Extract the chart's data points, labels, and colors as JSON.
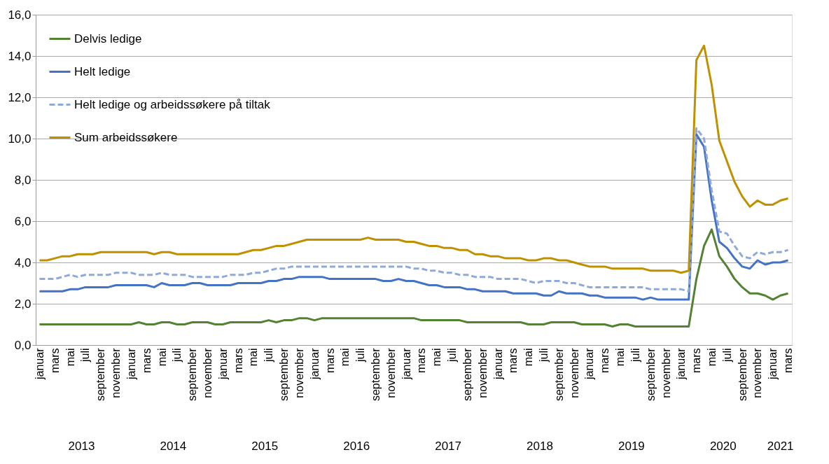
{
  "chart_data": {
    "type": "line",
    "categories": [
      "januar",
      null,
      "mars",
      null,
      "mai",
      null,
      "juli",
      null,
      "september",
      null,
      "november",
      null,
      "januar",
      null,
      "mars",
      null,
      "mai",
      null,
      "juli",
      null,
      "september",
      null,
      "november",
      null,
      "januar",
      null,
      "mars",
      null,
      "mai",
      null,
      "juli",
      null,
      "september",
      null,
      "november",
      null,
      "januar",
      null,
      "mars",
      null,
      "mai",
      null,
      "juli",
      null,
      "september",
      null,
      "november",
      null,
      "januar",
      null,
      "mars",
      null,
      "mai",
      null,
      "juli",
      null,
      "september",
      null,
      "november",
      null,
      "januar",
      null,
      "mars",
      null,
      "mai",
      null,
      "juli",
      null,
      "september",
      null,
      "november",
      null,
      "januar",
      null,
      "mars",
      null,
      "mai",
      null,
      "juli",
      null,
      "september",
      null,
      "november",
      null,
      "januar",
      null,
      "mars",
      null,
      "mai",
      null,
      "juli",
      null,
      "september",
      null,
      "november",
      null,
      "januar",
      null,
      "mars"
    ],
    "series": [
      {
        "name": "Delvis ledige",
        "color": "#548235",
        "line_style": "solid",
        "values": [
          1.0,
          1.0,
          1.0,
          1.0,
          1.0,
          1.0,
          1.0,
          1.0,
          1.0,
          1.0,
          1.0,
          1.0,
          1.0,
          1.1,
          1.0,
          1.0,
          1.1,
          1.1,
          1.0,
          1.0,
          1.1,
          1.1,
          1.1,
          1.0,
          1.0,
          1.1,
          1.1,
          1.1,
          1.1,
          1.1,
          1.2,
          1.1,
          1.2,
          1.2,
          1.3,
          1.3,
          1.2,
          1.3,
          1.3,
          1.3,
          1.3,
          1.3,
          1.3,
          1.3,
          1.3,
          1.3,
          1.3,
          1.3,
          1.3,
          1.3,
          1.2,
          1.2,
          1.2,
          1.2,
          1.2,
          1.2,
          1.1,
          1.1,
          1.1,
          1.1,
          1.1,
          1.1,
          1.1,
          1.1,
          1.0,
          1.0,
          1.0,
          1.1,
          1.1,
          1.1,
          1.1,
          1.0,
          1.0,
          1.0,
          1.0,
          0.9,
          1.0,
          1.0,
          0.9,
          0.9,
          0.9,
          0.9,
          0.9,
          0.9,
          0.9,
          0.9,
          3.2,
          4.8,
          5.6,
          4.3,
          3.8,
          3.2,
          2.8,
          2.5,
          2.5,
          2.4,
          2.2,
          2.4,
          2.5
        ]
      },
      {
        "name": "Helt ledige",
        "color": "#4472c4",
        "line_style": "solid",
        "values": [
          2.6,
          2.6,
          2.6,
          2.6,
          2.7,
          2.7,
          2.8,
          2.8,
          2.8,
          2.8,
          2.9,
          2.9,
          2.9,
          2.9,
          2.9,
          2.8,
          3.0,
          2.9,
          2.9,
          2.9,
          3.0,
          3.0,
          2.9,
          2.9,
          2.9,
          2.9,
          3.0,
          3.0,
          3.0,
          3.0,
          3.1,
          3.1,
          3.2,
          3.2,
          3.3,
          3.3,
          3.3,
          3.3,
          3.2,
          3.2,
          3.2,
          3.2,
          3.2,
          3.2,
          3.2,
          3.1,
          3.1,
          3.2,
          3.1,
          3.1,
          3.0,
          2.9,
          2.9,
          2.8,
          2.8,
          2.8,
          2.7,
          2.7,
          2.6,
          2.6,
          2.6,
          2.6,
          2.5,
          2.5,
          2.5,
          2.5,
          2.4,
          2.4,
          2.6,
          2.5,
          2.5,
          2.5,
          2.4,
          2.4,
          2.3,
          2.3,
          2.3,
          2.3,
          2.3,
          2.2,
          2.3,
          2.2,
          2.2,
          2.2,
          2.2,
          2.2,
          10.2,
          9.6,
          7.0,
          5.0,
          4.7,
          4.2,
          3.8,
          3.7,
          4.1,
          3.9,
          4.0,
          4.0,
          4.1
        ]
      },
      {
        "name": "Helt ledige og arbeidssøkere på tiltak",
        "color": "#8eaadb",
        "line_style": "dashed",
        "values": [
          3.2,
          3.2,
          3.2,
          3.3,
          3.4,
          3.3,
          3.4,
          3.4,
          3.4,
          3.4,
          3.5,
          3.5,
          3.5,
          3.4,
          3.4,
          3.4,
          3.5,
          3.4,
          3.4,
          3.4,
          3.3,
          3.3,
          3.3,
          3.3,
          3.3,
          3.4,
          3.4,
          3.4,
          3.5,
          3.5,
          3.6,
          3.7,
          3.7,
          3.8,
          3.8,
          3.8,
          3.8,
          3.8,
          3.8,
          3.8,
          3.8,
          3.8,
          3.8,
          3.8,
          3.8,
          3.8,
          3.8,
          3.8,
          3.8,
          3.7,
          3.7,
          3.6,
          3.6,
          3.5,
          3.5,
          3.4,
          3.4,
          3.3,
          3.3,
          3.3,
          3.2,
          3.2,
          3.2,
          3.2,
          3.1,
          3.0,
          3.1,
          3.1,
          3.1,
          3.0,
          3.0,
          2.9,
          2.8,
          2.8,
          2.8,
          2.8,
          2.8,
          2.8,
          2.8,
          2.8,
          2.7,
          2.7,
          2.7,
          2.7,
          2.7,
          2.6,
          10.5,
          10.0,
          7.5,
          5.5,
          5.4,
          4.8,
          4.3,
          4.2,
          4.5,
          4.4,
          4.5,
          4.5,
          4.6
        ]
      },
      {
        "name": "Sum arbeidssøkere",
        "color": "#bf9000",
        "line_style": "solid",
        "values": [
          4.1,
          4.1,
          4.2,
          4.3,
          4.3,
          4.4,
          4.4,
          4.4,
          4.5,
          4.5,
          4.5,
          4.5,
          4.5,
          4.5,
          4.5,
          4.4,
          4.5,
          4.5,
          4.4,
          4.4,
          4.4,
          4.4,
          4.4,
          4.4,
          4.4,
          4.4,
          4.4,
          4.5,
          4.6,
          4.6,
          4.7,
          4.8,
          4.8,
          4.9,
          5.0,
          5.1,
          5.1,
          5.1,
          5.1,
          5.1,
          5.1,
          5.1,
          5.1,
          5.2,
          5.1,
          5.1,
          5.1,
          5.1,
          5.0,
          5.0,
          4.9,
          4.8,
          4.8,
          4.7,
          4.7,
          4.6,
          4.6,
          4.4,
          4.4,
          4.3,
          4.3,
          4.2,
          4.2,
          4.2,
          4.1,
          4.1,
          4.2,
          4.2,
          4.1,
          4.1,
          4.0,
          3.9,
          3.8,
          3.8,
          3.8,
          3.7,
          3.7,
          3.7,
          3.7,
          3.7,
          3.6,
          3.6,
          3.6,
          3.6,
          3.5,
          3.6,
          13.8,
          14.5,
          12.6,
          9.9,
          8.9,
          7.9,
          7.2,
          6.7,
          7.0,
          6.8,
          6.8,
          7.0,
          7.1
        ]
      }
    ],
    "ylim": [
      0,
      16
    ],
    "yticks": [
      {
        "value": 0,
        "label": "0,0"
      },
      {
        "value": 2,
        "label": "2,0"
      },
      {
        "value": 4,
        "label": "4,0"
      },
      {
        "value": 6,
        "label": "6,0"
      },
      {
        "value": 8,
        "label": "8,0"
      },
      {
        "value": 10,
        "label": "10,0"
      },
      {
        "value": 12,
        "label": "12,0"
      },
      {
        "value": 14,
        "label": "14,0"
      },
      {
        "value": 16,
        "label": "16,0"
      }
    ],
    "grid": "y",
    "legend": "top left",
    "annotations": [
      "2013",
      "2014",
      "2015",
      "2016",
      "2017",
      "2018",
      "2019",
      "2020",
      "2021"
    ]
  }
}
